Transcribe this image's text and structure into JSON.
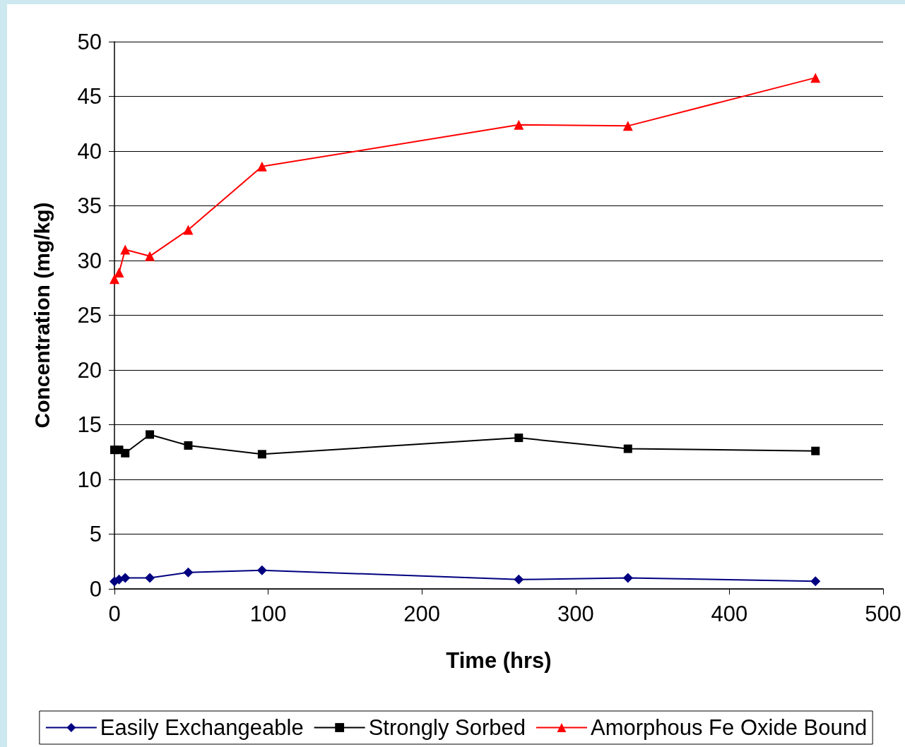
{
  "chart_data": {
    "type": "line",
    "xlabel": "Time (hrs)",
    "ylabel": "Concentration (mg/kg)",
    "x": [
      0,
      3,
      7,
      23,
      48,
      96,
      263,
      334,
      456
    ],
    "series": [
      {
        "name": "Easily Exchangeable",
        "color": "#000080",
        "marker": "diamond",
        "values": [
          0.67,
          0.85,
          1.0,
          1.0,
          1.5,
          1.7,
          0.85,
          1.0,
          0.7
        ]
      },
      {
        "name": "Strongly Sorbed",
        "color": "#000000",
        "marker": "square",
        "values": [
          12.7,
          12.7,
          12.4,
          14.1,
          13.1,
          12.3,
          13.8,
          12.8,
          12.6
        ]
      },
      {
        "name": "Amorphous Fe Oxide Bound",
        "color": "#ff0000",
        "marker": "triangle",
        "values": [
          28.3,
          28.9,
          31.0,
          30.4,
          32.8,
          38.6,
          42.4,
          42.3,
          46.7
        ]
      }
    ],
    "xlim": [
      0,
      500
    ],
    "xticks": [
      0,
      100,
      200,
      300,
      400,
      500
    ],
    "ylim": [
      0,
      50
    ],
    "yticks": [
      0,
      5,
      10,
      15,
      20,
      25,
      30,
      35,
      40,
      45,
      50
    ],
    "grid": "y",
    "legend": "bottom",
    "line_style": "solid"
  }
}
